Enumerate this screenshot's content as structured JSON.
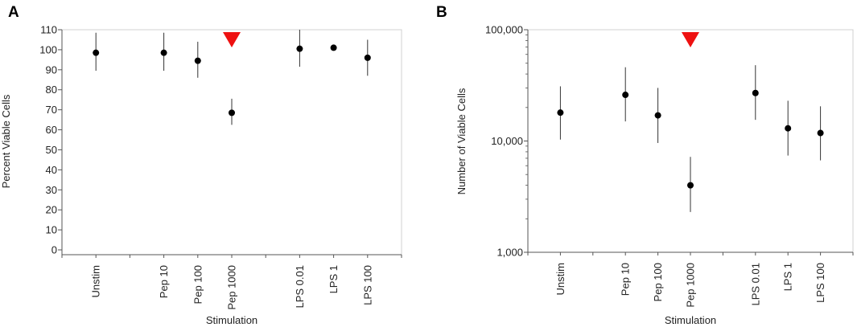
{
  "colors": {
    "marker": "#000000",
    "errorbar": "#333333",
    "arrow": "#ee1111",
    "frame": "#d0d0d0",
    "axis": "#555555"
  },
  "chart_data": [
    {
      "panel": "A",
      "type": "scatter",
      "xlabel": "Stimulation",
      "ylabel": "Percent Viable Cells",
      "ylim": [
        0,
        110
      ],
      "yticks": [
        0,
        10,
        20,
        30,
        40,
        50,
        60,
        70,
        80,
        90,
        100,
        110
      ],
      "ytick_labels": [
        "0",
        "10",
        "20",
        "30",
        "40",
        "50",
        "60",
        "70",
        "80",
        "90",
        "100",
        "110"
      ],
      "categories": [
        "Unstim",
        "Pep 10",
        "Pep 100",
        "Pep 1000",
        "LPS 0.01",
        "LPS 1",
        "LPS 100"
      ],
      "category_slots": [
        1,
        3,
        4,
        5,
        7,
        8,
        9
      ],
      "slot_count": 10,
      "points": [
        {
          "y": 98.5,
          "lo": 89.5,
          "hi": 108.5
        },
        {
          "y": 98.5,
          "lo": 89.5,
          "hi": 108.5
        },
        {
          "y": 94.5,
          "lo": 86,
          "hi": 104
        },
        {
          "y": 68.5,
          "lo": 62.5,
          "hi": 75.5
        },
        {
          "y": 100.5,
          "lo": 91.5,
          "hi": 110
        },
        {
          "y": 101,
          "lo": 101,
          "hi": 101
        },
        {
          "y": 96,
          "lo": 87,
          "hi": 105
        }
      ],
      "annotation": {
        "marker": "red-down-triangle",
        "category": "Pep 1000"
      },
      "grid": false
    },
    {
      "panel": "B",
      "type": "scatter",
      "xlabel": "Stimulation",
      "ylabel": "Number of Viable Cells",
      "yscale": "log",
      "ylim": [
        1000,
        100000
      ],
      "yticks": [
        1000,
        10000,
        100000
      ],
      "ytick_labels": [
        "1,000",
        "10,000",
        "100,000"
      ],
      "categories": [
        "Unstim",
        "Pep 10",
        "Pep 100",
        "Pep 1000",
        "LPS 0.01",
        "LPS 1",
        "LPS 100"
      ],
      "category_slots": [
        1,
        3,
        4,
        5,
        7,
        8,
        9
      ],
      "slot_count": 10,
      "points": [
        {
          "y": 18000,
          "lo": 10300,
          "hi": 31000
        },
        {
          "y": 26000,
          "lo": 15000,
          "hi": 46000
        },
        {
          "y": 17000,
          "lo": 9600,
          "hi": 30000
        },
        {
          "y": 4000,
          "lo": 2300,
          "hi": 7200
        },
        {
          "y": 27000,
          "lo": 15500,
          "hi": 48000
        },
        {
          "y": 13000,
          "lo": 7400,
          "hi": 23000
        },
        {
          "y": 11800,
          "lo": 6700,
          "hi": 20500
        }
      ],
      "annotation": {
        "marker": "red-down-triangle",
        "category": "Pep 1000"
      },
      "grid": false
    }
  ]
}
